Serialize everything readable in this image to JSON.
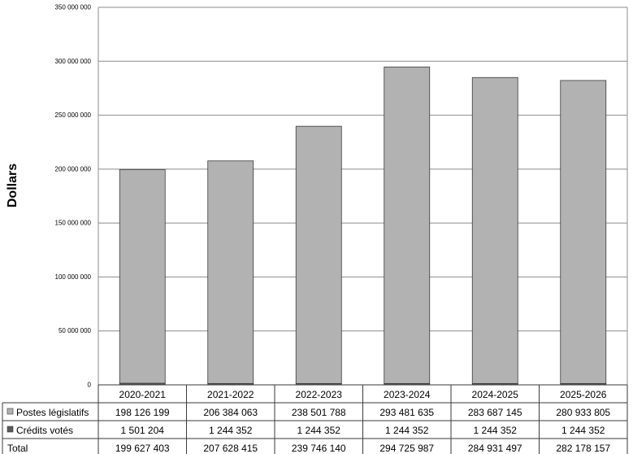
{
  "chart_data": {
    "type": "bar",
    "stacked": true,
    "title": "",
    "xlabel": "",
    "ylabel": "Dollars",
    "ylim": [
      0,
      350000000
    ],
    "yticks": [
      0,
      50000000,
      100000000,
      150000000,
      200000000,
      250000000,
      300000000,
      350000000
    ],
    "ytick_labels": [
      "0",
      "50 000 000",
      "100 000 000",
      "150 000 000",
      "200 000 000",
      "250 000 000",
      "300 000 000",
      "350 000 000"
    ],
    "categories": [
      "2020-2021",
      "2021-2022",
      "2022-2023",
      "2023-2024",
      "2024-2025",
      "2025-2026"
    ],
    "series": [
      {
        "name": "Crédits votés",
        "color": "#595959",
        "values": [
          1501204,
          1244352,
          1244352,
          1244352,
          1244352,
          1244352
        ],
        "labels": [
          "1 501 204",
          "1 244 352",
          "1 244 352",
          "1 244 352",
          "1 244 352",
          "1 244 352"
        ]
      },
      {
        "name": "Postes législatifs",
        "color": "#b2b2b2",
        "values": [
          198126199,
          206384063,
          238501788,
          293481635,
          283687145,
          280933805
        ],
        "labels": [
          "198 126 199",
          "206 384 063",
          "238 501 788",
          "293 481 635",
          "283 687 145",
          "280 933 805"
        ]
      }
    ],
    "total": {
      "name": "Total",
      "values": [
        199627403,
        207628415,
        239746140,
        294725987,
        284931497,
        282178157
      ],
      "labels": [
        "199 627 403",
        "207 628 415",
        "239 746 140",
        "294 725 987",
        "284 931 497",
        "282 178 157"
      ]
    },
    "grid": true,
    "legend": "data-table-below"
  }
}
